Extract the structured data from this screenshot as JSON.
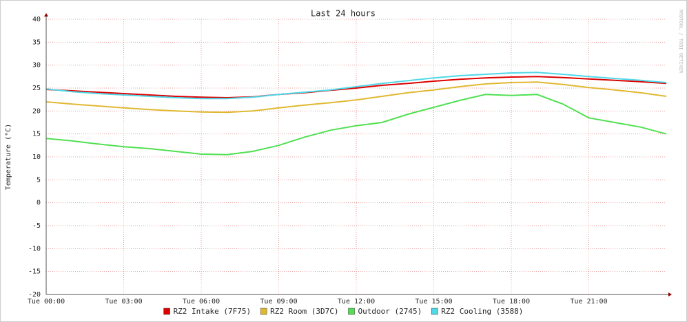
{
  "chart_data": {
    "type": "line",
    "title": "Last 24 hours",
    "y_label": "Temperature (°C)",
    "watermark": "RRDTOOL / TOBI OETIKER",
    "x": [
      0,
      1,
      2,
      3,
      4,
      5,
      6,
      7,
      8,
      9,
      10,
      11,
      12,
      13,
      14,
      15,
      16,
      17,
      18,
      19,
      20,
      21,
      22,
      23,
      24
    ],
    "xlim": [
      0,
      24
    ],
    "xticks": [
      {
        "value": 0,
        "label": "Tue 00:00"
      },
      {
        "value": 3,
        "label": "Tue 03:00"
      },
      {
        "value": 6,
        "label": "Tue 06:00"
      },
      {
        "value": 9,
        "label": "Tue 09:00"
      },
      {
        "value": 12,
        "label": "Tue 12:00"
      },
      {
        "value": 15,
        "label": "Tue 15:00"
      },
      {
        "value": 18,
        "label": "Tue 18:00"
      },
      {
        "value": 21,
        "label": "Tue 21:00"
      }
    ],
    "ylim": [
      -20,
      40
    ],
    "yticks": [
      -20,
      -15,
      -10,
      -5,
      0,
      5,
      10,
      15,
      20,
      25,
      30,
      35,
      40
    ],
    "grid": true,
    "legend": "bottom",
    "series": [
      {
        "name": "RZ2 Intake (7F75)",
        "color": "#dd0000",
        "values": [
          24.7,
          24.4,
          24.1,
          23.8,
          23.5,
          23.2,
          23.0,
          22.9,
          23.1,
          23.6,
          24.0,
          24.5,
          25.0,
          25.6,
          26.0,
          26.5,
          26.9,
          27.2,
          27.4,
          27.5,
          27.3,
          27.0,
          26.7,
          26.4,
          26.0
        ]
      },
      {
        "name": "RZ2 Room (3D7C)",
        "color": "#e0b830",
        "values": [
          22.0,
          21.5,
          21.1,
          20.7,
          20.3,
          20.0,
          19.8,
          19.7,
          20.0,
          20.7,
          21.3,
          21.8,
          22.4,
          23.2,
          24.0,
          24.6,
          25.3,
          25.9,
          26.2,
          26.3,
          25.8,
          25.1,
          24.6,
          24.0,
          23.2
        ]
      },
      {
        "name": "Outdoor (2745)",
        "color": "#50e050",
        "values": [
          14.0,
          13.5,
          12.8,
          12.2,
          11.8,
          11.2,
          10.6,
          10.5,
          11.2,
          12.5,
          14.3,
          15.8,
          16.8,
          17.5,
          19.3,
          20.8,
          22.3,
          23.6,
          23.4,
          23.6,
          21.5,
          18.5,
          17.5,
          16.5,
          15.0
        ]
      },
      {
        "name": "RZ2 Cooling (3588)",
        "color": "#50d8e8",
        "values": [
          24.8,
          24.2,
          23.8,
          23.5,
          23.2,
          22.9,
          22.7,
          22.7,
          23.0,
          23.6,
          24.1,
          24.6,
          25.3,
          26.0,
          26.6,
          27.2,
          27.7,
          28.0,
          28.3,
          28.4,
          28.0,
          27.5,
          27.1,
          26.7,
          26.2
        ]
      }
    ]
  }
}
